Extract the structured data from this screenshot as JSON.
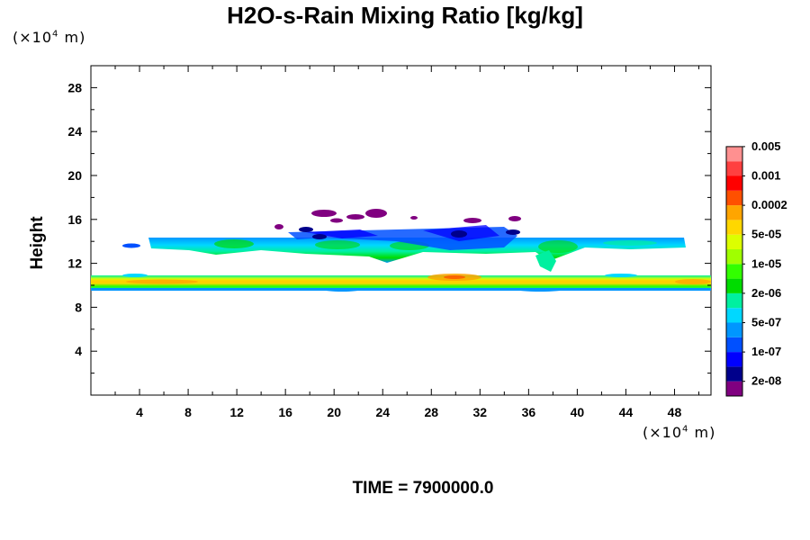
{
  "chart_data": {
    "type": "heatmap",
    "title": "H2O-s-Rain Mixing Ratio [kg/kg]",
    "xlabel": "",
    "ylabel": "Height",
    "x_unit": "(×10",
    "x_unit_exp": "4",
    "x_unit_suffix": " m)",
    "y_unit": "(×10",
    "y_unit_exp": "4",
    "y_unit_suffix": " m)",
    "xlim": [
      0,
      51
    ],
    "ylim": [
      0,
      30
    ],
    "x_ticks": [
      4,
      8,
      12,
      16,
      20,
      24,
      28,
      32,
      36,
      40,
      44,
      48
    ],
    "y_ticks": [
      4,
      8,
      12,
      16,
      20,
      24,
      28
    ],
    "time_label": "TIME = 7900000.0",
    "colorbar": {
      "colors": [
        "#800080",
        "#00008b",
        "#0000ff",
        "#0050ff",
        "#0096ff",
        "#00d8ff",
        "#00f0a0",
        "#00dc00",
        "#32ff00",
        "#a0ff00",
        "#dcff00",
        "#ffd700",
        "#ffa500",
        "#ff5000",
        "#ff0000",
        "#ff4040",
        "#ff9090"
      ],
      "labels": [
        {
          "text": "2e-08",
          "index": 1
        },
        {
          "text": "1e-07",
          "index": 3
        },
        {
          "text": "5e-07",
          "index": 5
        },
        {
          "text": "2e-06",
          "index": 7
        },
        {
          "text": "1e-05",
          "index": 9
        },
        {
          "text": "5e-05",
          "index": 11
        },
        {
          "text": "0.0002",
          "index": 13
        },
        {
          "text": "0.001",
          "index": 15
        },
        {
          "text": "0.005",
          "index": 17
        }
      ]
    },
    "features": [
      {
        "name": "lower-band",
        "x": [
          0,
          51
        ],
        "y": [
          9.8,
          11.0
        ],
        "level": "5e-05 to 0.001"
      },
      {
        "name": "upper-band",
        "x": [
          3,
          49
        ],
        "y": [
          12.5,
          14.5
        ],
        "level": "2e-06 to 1e-05"
      },
      {
        "name": "sparse-patches",
        "x": [
          15,
          35
        ],
        "y": [
          14.5,
          17.3
        ],
        "level": "2e-08 to 1e-07"
      }
    ]
  }
}
